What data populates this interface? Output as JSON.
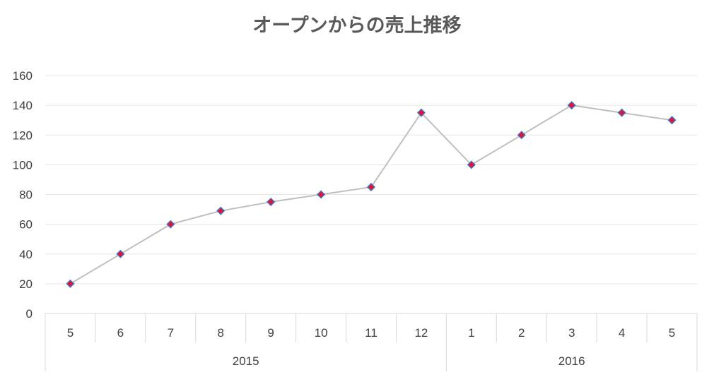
{
  "chart_data": {
    "type": "line",
    "title": "オープンからの売上推移",
    "categories": [
      {
        "year": "2015",
        "month": "5"
      },
      {
        "year": "2015",
        "month": "6"
      },
      {
        "year": "2015",
        "month": "7"
      },
      {
        "year": "2015",
        "month": "8"
      },
      {
        "year": "2015",
        "month": "9"
      },
      {
        "year": "2015",
        "month": "10"
      },
      {
        "year": "2015",
        "month": "11"
      },
      {
        "year": "2015",
        "month": "12"
      },
      {
        "year": "2016",
        "month": "1"
      },
      {
        "year": "2016",
        "month": "2"
      },
      {
        "year": "2016",
        "month": "3"
      },
      {
        "year": "2016",
        "month": "4"
      },
      {
        "year": "2016",
        "month": "5"
      }
    ],
    "year_groups": [
      "2015",
      "2016"
    ],
    "values": [
      20,
      40,
      60,
      69,
      75,
      80,
      85,
      135,
      100,
      120,
      140,
      135,
      130
    ],
    "ylim": [
      0,
      160
    ],
    "yticks": [
      0,
      20,
      40,
      60,
      80,
      100,
      120,
      140,
      160
    ],
    "grid": true,
    "legend": "none",
    "colors": {
      "line": "#bfbfbf",
      "marker_fill": "#e8112d",
      "marker_edge": "#4472c4",
      "gridline": "#e6e6e6",
      "axis": "#d9d9d9",
      "text": "#404040",
      "title": "#595959"
    }
  }
}
